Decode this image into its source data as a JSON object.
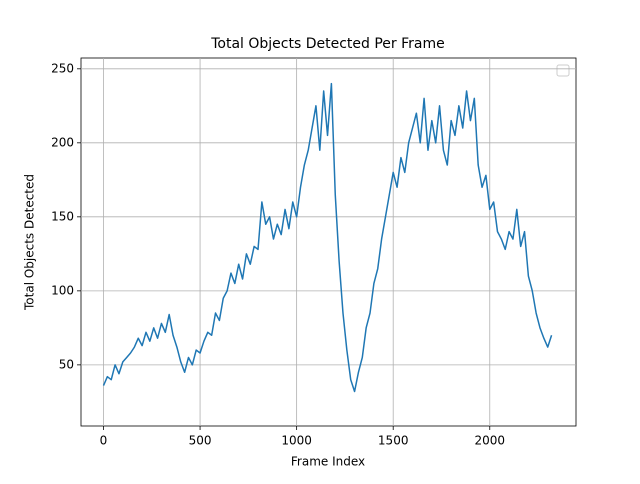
{
  "chart_data": {
    "type": "line",
    "title": "Total Objects Detected Per Frame",
    "x_label": "Frame Index",
    "y_label": "Total Objects Detected",
    "x": [
      0,
      20,
      40,
      60,
      80,
      100,
      120,
      140,
      160,
      180,
      200,
      220,
      240,
      260,
      280,
      300,
      320,
      340,
      360,
      380,
      400,
      420,
      440,
      460,
      480,
      500,
      520,
      540,
      560,
      580,
      600,
      620,
      640,
      660,
      680,
      700,
      720,
      740,
      760,
      780,
      800,
      820,
      840,
      860,
      880,
      900,
      920,
      940,
      960,
      980,
      1000,
      1020,
      1040,
      1060,
      1080,
      1100,
      1120,
      1140,
      1160,
      1180,
      1200,
      1220,
      1240,
      1260,
      1280,
      1300,
      1320,
      1340,
      1360,
      1380,
      1400,
      1420,
      1440,
      1460,
      1480,
      1500,
      1520,
      1540,
      1560,
      1580,
      1600,
      1620,
      1640,
      1660,
      1680,
      1700,
      1720,
      1740,
      1760,
      1780,
      1800,
      1820,
      1840,
      1860,
      1880,
      1900,
      1920,
      1940,
      1960,
      1980,
      2000,
      2020,
      2040,
      2060,
      2080,
      2100,
      2120,
      2140,
      2160,
      2180,
      2200,
      2220,
      2240,
      2260,
      2280,
      2300,
      2320
    ],
    "series": [
      {
        "color": "#1f77b4",
        "values": [
          36,
          42,
          40,
          50,
          44,
          52,
          55,
          58,
          62,
          68,
          63,
          72,
          66,
          75,
          68,
          78,
          72,
          84,
          70,
          62,
          52,
          45,
          55,
          50,
          60,
          58,
          66,
          72,
          70,
          85,
          80,
          95,
          100,
          112,
          105,
          118,
          108,
          125,
          118,
          130,
          128,
          160,
          145,
          150,
          135,
          145,
          138,
          155,
          142,
          160,
          150,
          170,
          185,
          195,
          210,
          225,
          195,
          235,
          205,
          240,
          165,
          120,
          85,
          60,
          40,
          32,
          45,
          55,
          75,
          85,
          105,
          115,
          135,
          150,
          165,
          180,
          170,
          190,
          180,
          200,
          210,
          220,
          200,
          230,
          195,
          215,
          200,
          225,
          195,
          185,
          215,
          205,
          225,
          210,
          235,
          215,
          230,
          185,
          170,
          178,
          155,
          160,
          140,
          135,
          128,
          140,
          135,
          155,
          130,
          140,
          110,
          100,
          85,
          75,
          68,
          62,
          70
        ]
      }
    ],
    "xlim": [
      -116.5,
      2446.5
    ],
    "ylim": [
      8.7,
      257.3
    ],
    "xticks": [
      0,
      500,
      1000,
      1500,
      2000
    ],
    "yticks": [
      50,
      100,
      150,
      200,
      250
    ],
    "grid": true
  }
}
